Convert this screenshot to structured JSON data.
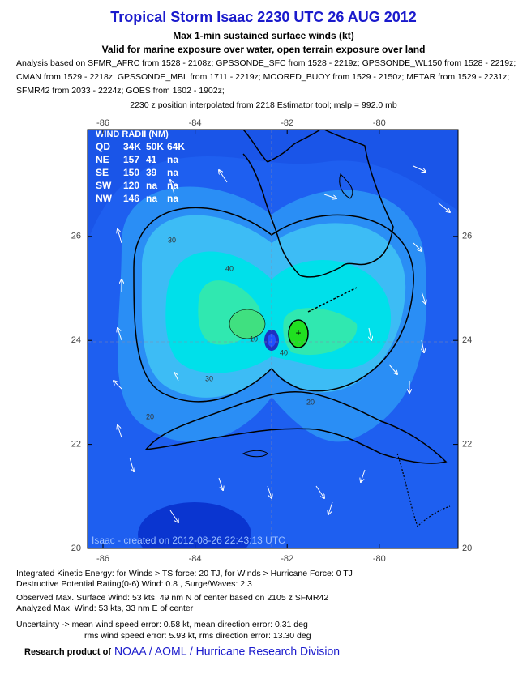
{
  "header": {
    "title": "Tropical Storm Isaac 2230 UTC 26 AUG 2012",
    "subtitle": "Max 1-min sustained surface winds (kt)",
    "exposure": "Valid for marine exposure over water, open terrain exposure over land",
    "analysis": [
      "Analysis based on SFMR_AFRC from 1528 - 2108z; GPSSONDE_SFC from 1528 - 2219z; GPSSONDE_WL150 from 1528 - 2219z;",
      "CMAN from 1529 - 2218z; GPSSONDE_MBL from 1711 - 2219z; MOORED_BUOY from 1529 - 2150z; METAR from 1529 - 2231z;",
      "SFMR42 from 2033 - 2224z; GOES from 1602 - 1902z;"
    ],
    "position": "2230 z position interpolated from 2218 Estimator tool; mslp = 992.0 mb"
  },
  "map": {
    "lon_ticks": [
      -86,
      -84,
      -82,
      -80
    ],
    "lat_ticks": [
      26,
      24,
      22,
      20
    ],
    "wind_radii": {
      "title": "WIND RADII (NM)",
      "rows": [
        [
          "QD",
          "34K",
          "50K",
          "64K"
        ],
        [
          "NE",
          "157",
          "41",
          "na"
        ],
        [
          "SE",
          "150",
          "39",
          "na"
        ],
        [
          "SW",
          "120",
          "na",
          "na"
        ],
        [
          "NW",
          "146",
          "na",
          "na"
        ]
      ]
    },
    "contour_labels": [
      30,
      40,
      40,
      30,
      20,
      20,
      10
    ],
    "credit": "Isaac - created on 2012-08-26 22:43:13 UTC"
  },
  "footer": {
    "lines": [
      "Integrated Kinetic Energy: for Winds > TS force: 20 TJ, for Winds > Hurricane Force: 0 TJ",
      "Destructive Potential Rating(0-6)  Wind: 0.8 , Surge/Waves: 2.3",
      "Observed Max. Surface Wind: 53 kts, 49 nm N of center based on 2105 z SFMR42",
      "Analyzed Max. Wind: 53 kts, 33 nm  E of center",
      "Uncertainty -> mean wind speed error: 0.58 kt, mean direction error: 0.31 deg",
      "rms wind speed error: 5.93 kt, rms direction error: 13.30 deg"
    ],
    "research": "Research product of",
    "org": "NOAA / AOML / Hurricane Research Division"
  }
}
